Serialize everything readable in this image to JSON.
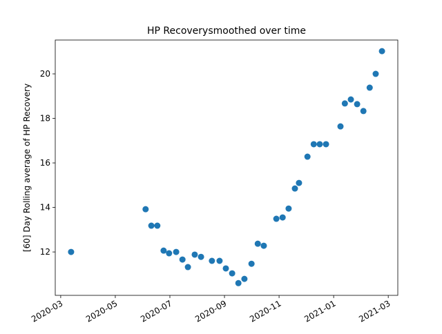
{
  "chart_data": {
    "type": "scatter",
    "title": "HP Recoverysmoothed over time",
    "ylabel": "[60] Day Rolling average of HP Recovery",
    "color": "#1f77b4",
    "x": [
      2.38,
      5.11,
      5.32,
      5.54,
      5.77,
      5.97,
      6.23,
      6.46,
      6.66,
      6.91,
      7.14,
      7.54,
      7.82,
      8.05,
      8.28,
      8.51,
      8.73,
      8.99,
      9.22,
      9.44,
      9.9,
      10.13,
      10.35,
      10.58,
      10.73,
      11.04,
      11.27,
      11.49,
      11.72,
      12.25,
      12.41,
      12.63,
      12.86,
      13.09,
      13.32,
      13.54,
      13.77
    ],
    "values": [
      12.0,
      13.92,
      13.18,
      13.18,
      12.06,
      11.94,
      12.0,
      11.66,
      11.32,
      11.88,
      11.78,
      11.6,
      11.6,
      11.26,
      11.04,
      10.6,
      10.79,
      11.47,
      12.37,
      12.28,
      13.49,
      13.55,
      13.95,
      14.85,
      15.1,
      16.28,
      16.84,
      16.84,
      16.84,
      17.64,
      18.67,
      18.85,
      18.64,
      18.33,
      19.38,
      20.0,
      21.02
    ],
    "xlim": [
      1.8,
      14.35
    ],
    "xticks": [
      {
        "value": 2,
        "label": "2020-03"
      },
      {
        "value": 4,
        "label": "2020-05"
      },
      {
        "value": 6,
        "label": "2020-07"
      },
      {
        "value": 8,
        "label": "2020-09"
      },
      {
        "value": 10,
        "label": "2020-11"
      },
      {
        "value": 12,
        "label": "2021-01"
      },
      {
        "value": 14,
        "label": "2021-03"
      }
    ],
    "ylim": [
      10.05,
      21.52
    ],
    "yticks": [
      12,
      14,
      16,
      18,
      20
    ],
    "grid": false
  }
}
